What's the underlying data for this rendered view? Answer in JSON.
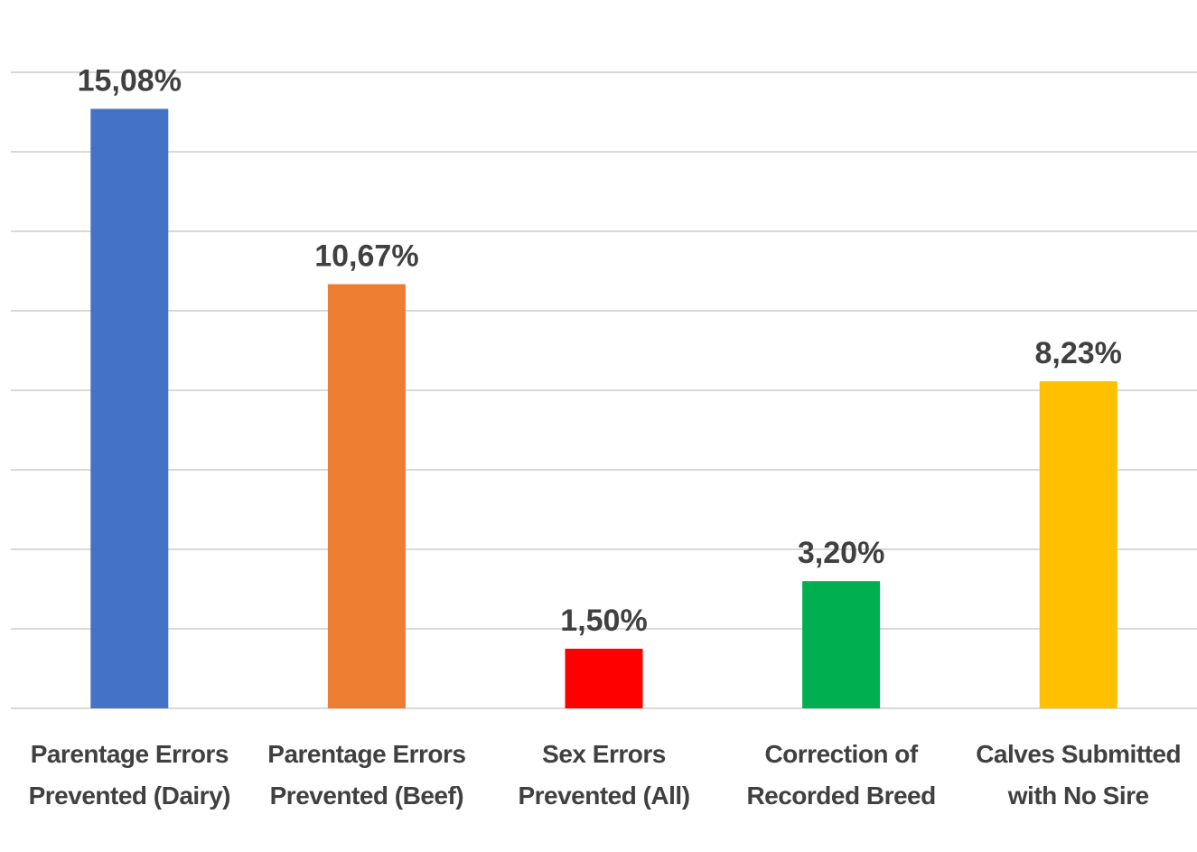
{
  "chart_data": {
    "type": "bar",
    "categories": [
      "Parentage Errors Prevented (Dairy)",
      "Parentage Errors Prevented (Beef)",
      "Sex Errors Prevented (All)",
      "Correction of Recorded Breed",
      "Calves Submitted with No Sire"
    ],
    "values": [
      15.08,
      10.67,
      1.5,
      3.2,
      8.23
    ],
    "value_labels": [
      "15,08%",
      "10,67%",
      "1,50%",
      "3,20%",
      "8,23%"
    ],
    "colors": [
      "#4472c4",
      "#ed7d31",
      "#ff0000",
      "#00b050",
      "#ffc000"
    ],
    "ylim": [
      0,
      16
    ],
    "yticks": [
      0,
      2,
      4,
      6,
      8,
      10,
      12,
      14,
      16
    ],
    "grid": true
  }
}
